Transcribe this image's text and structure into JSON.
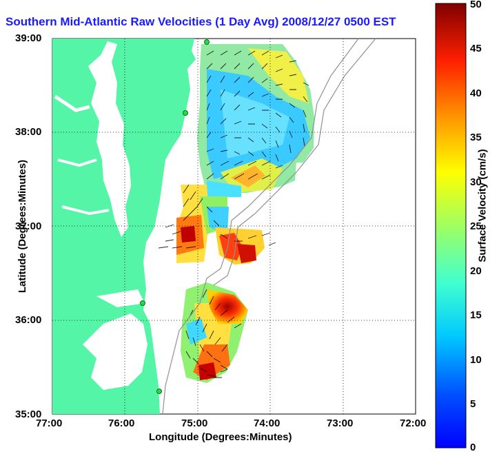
{
  "title": "Southern Mid-Atlantic Raw Velocities (1 Day Avg) 2008/12/27 0500 EST",
  "xlabel": "Longitude (Degrees:Minutes)",
  "ylabel": "Latitude (Degrees:Minutes)",
  "colorbar_label": "Surface Velocity (cm/s)",
  "x_ticks": [
    "77:00",
    "76:00",
    "75:00",
    "74:00",
    "73:00",
    "72:00"
  ],
  "y_ticks": [
    "39:00",
    "38:00",
    "37:00",
    "36:00",
    "35:00"
  ],
  "colorbar_ticks": [
    "0",
    "5",
    "10",
    "15",
    "20",
    "25",
    "30",
    "35",
    "40",
    "45",
    "50"
  ],
  "colors": {
    "land": "#55f5a8",
    "title": "#1a1aff",
    "velocity_scale": "jet"
  },
  "chart_data": {
    "type": "map",
    "x_range": [
      "-77:00",
      "-72:00"
    ],
    "y_range": [
      "35:00",
      "39:00"
    ],
    "grid": true,
    "colorbar": {
      "min": 0,
      "max": 50,
      "unit": "cm/s"
    }
  }
}
